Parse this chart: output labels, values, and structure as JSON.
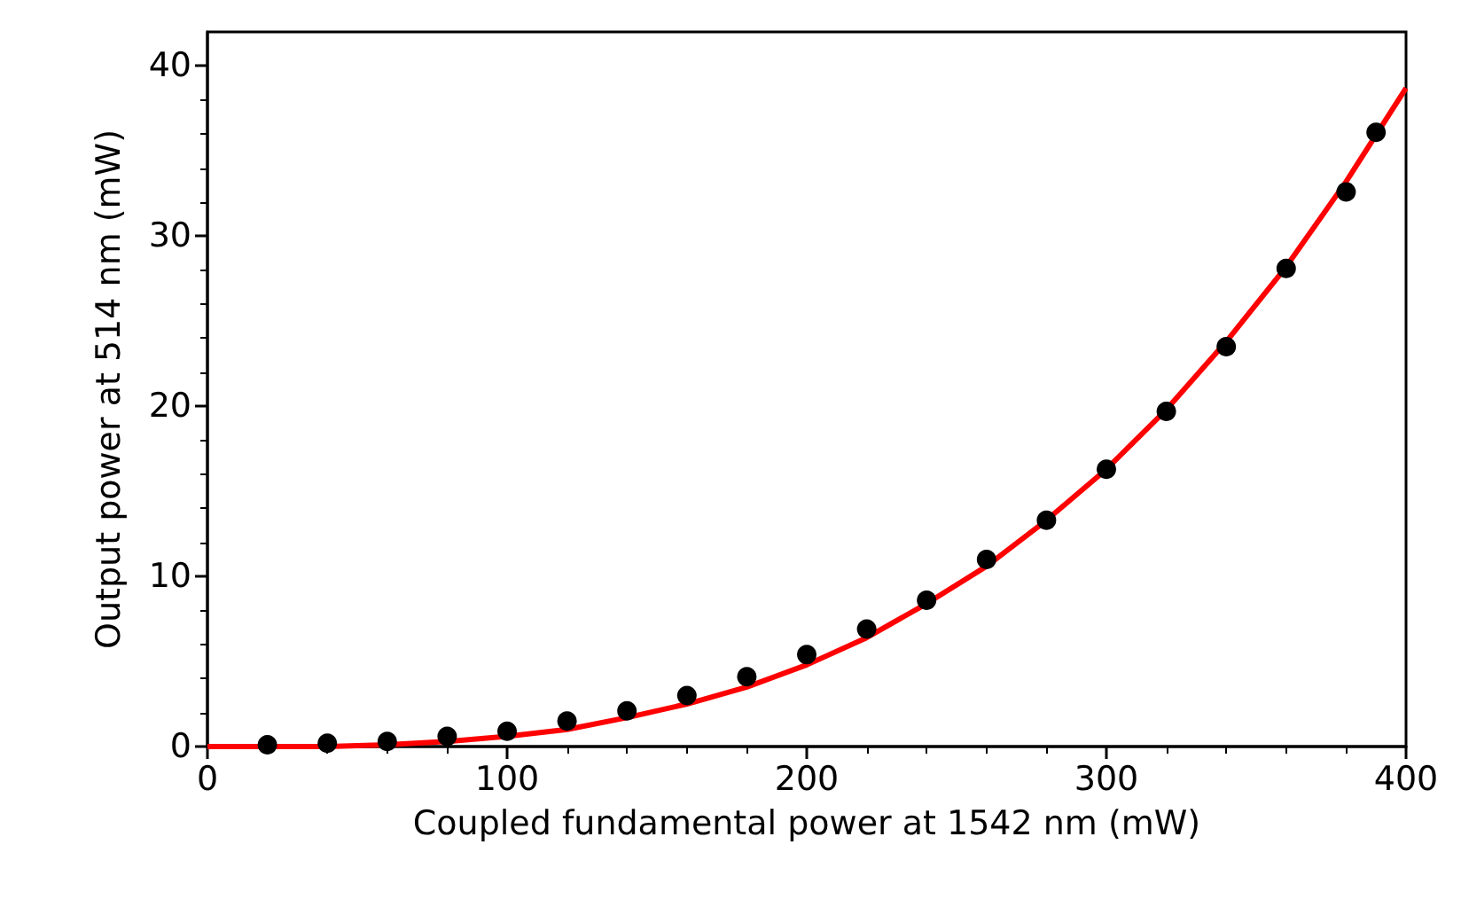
{
  "chart_data": {
    "type": "scatter",
    "xlabel": "Coupled fundamental power at 1542 nm (mW)",
    "ylabel": "Output power at 514 nm (mW)",
    "xlim": [
      0,
      400
    ],
    "xticks": [
      0,
      100,
      200,
      300,
      400
    ],
    "ylim": [
      0,
      42
    ],
    "yticks": [
      0,
      10,
      20,
      30,
      40
    ],
    "grid": false,
    "marker": "circle",
    "series": [
      {
        "type": "line",
        "color": "#ff0000",
        "line_style": "solid",
        "marker": "none",
        "x": [
          0,
          20,
          40,
          60,
          80,
          100,
          120,
          140,
          160,
          180,
          200,
          220,
          240,
          260,
          280,
          300,
          320,
          340,
          360,
          380,
          400
        ],
        "values": [
          0,
          0.0,
          0.0,
          0.1,
          0.3,
          0.6,
          1.0,
          1.7,
          2.5,
          3.5,
          4.8,
          6.4,
          8.4,
          10.6,
          13.3,
          16.3,
          19.8,
          23.8,
          28.2,
          33.2,
          38.7
        ]
      },
      {
        "color": "#000000",
        "x": [
          20,
          40,
          60,
          80,
          100,
          120,
          140,
          160,
          180,
          200,
          220,
          240,
          260,
          280,
          300,
          320,
          340,
          360,
          380,
          390
        ],
        "values": [
          0.1,
          0.2,
          0.3,
          0.6,
          0.9,
          1.5,
          2.1,
          3.0,
          4.1,
          5.4,
          6.9,
          8.6,
          11.0,
          13.3,
          16.3,
          19.7,
          23.5,
          28.1,
          32.6,
          36.1
        ]
      }
    ]
  }
}
